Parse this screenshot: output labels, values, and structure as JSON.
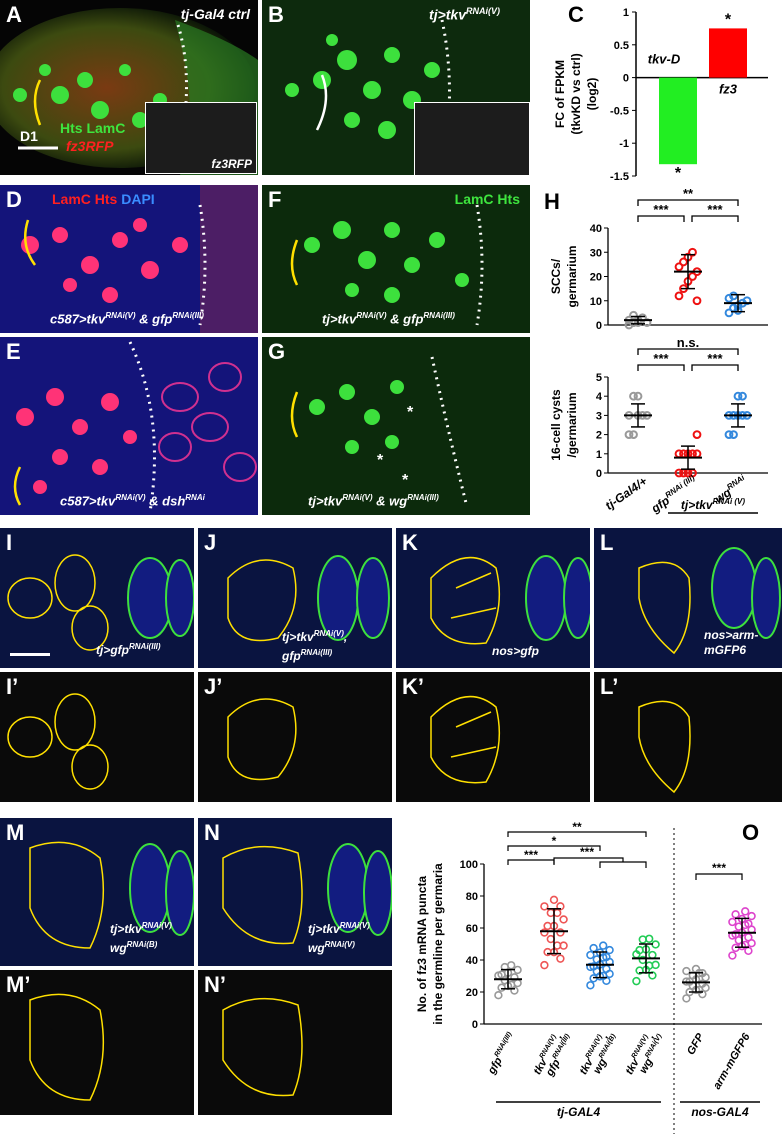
{
  "panels": {
    "A": {
      "letter": "A",
      "title": "tj-Gal4 ctrl",
      "stain": "Hts LamC",
      "reporter": "fz3RFP",
      "inset": "fz3RFP",
      "scale": "D1"
    },
    "B": {
      "letter": "B",
      "title": "tj>tkv",
      "title_sup": "RNAi(V)"
    },
    "C": {
      "letter": "C"
    },
    "D": {
      "letter": "D",
      "stain_red": "LamC Hts",
      "stain_blue": "DAPI",
      "genotype": "c587>tkv",
      "sup1": "RNAi(V)",
      "amp": "& gfp",
      "sup2": "RNAi(III)"
    },
    "E": {
      "letter": "E",
      "genotype": "c587>tkv",
      "sup1": "RNAi(V)",
      "amp": "& dsh",
      "sup2": "RNAi"
    },
    "F": {
      "letter": "F",
      "stain": "LamC Hts",
      "genotype": "tj>tkv",
      "sup1": "RNAi(V)",
      "amp": "& gfp",
      "sup2": "RNAi(III)"
    },
    "G": {
      "letter": "G",
      "genotype": "tj>tkv",
      "sup1": "RNAi(V)",
      "amp": "& wg",
      "sup2": "RNAi(III)"
    },
    "H": {
      "letter": "H"
    },
    "I": {
      "letter": "I",
      "genotype": "tj>gfp",
      "sup": "RNAi(III)"
    },
    "J": {
      "letter": "J",
      "genotype": "tj>tkv",
      "sup": "RNAi(V)",
      "line2": "gfp",
      "sup2": "RNAi(III)"
    },
    "K": {
      "letter": "K",
      "genotype": "nos>gfp"
    },
    "L": {
      "letter": "L",
      "genotype": "nos>arm-",
      "line2": "mGFP6"
    },
    "I2": {
      "letter": "I’"
    },
    "J2": {
      "letter": "J’"
    },
    "K2": {
      "letter": "K’"
    },
    "L2": {
      "letter": "L’"
    },
    "M": {
      "letter": "M",
      "genotype": "tj>tkv",
      "sup": "RNAi(V)",
      "line2": "wg",
      "sup2": "RNAi(B)"
    },
    "N": {
      "letter": "N",
      "genotype": "tj>tkv",
      "sup": "RNAi(V)",
      "line2": "wg",
      "sup2": "RNAi(V)"
    },
    "M2": {
      "letter": "M’"
    },
    "N2": {
      "letter": "N’"
    },
    "O": {
      "letter": "O"
    }
  },
  "chart_data": [
    {
      "panel": "C",
      "type": "bar",
      "categories": [
        "tkv-D",
        "fz3"
      ],
      "values": [
        -1.32,
        0.75
      ],
      "colors": [
        "#22ee22",
        "#ff0000"
      ],
      "ylabel": "FC of FPKM (tkvKD vs ctrl) (log2)",
      "ylabel_lines": [
        "FC of FPKM",
        "(tkvKD vs ctrl)",
        "(log2)"
      ],
      "ylim": [
        -1.5,
        1
      ],
      "yticks": [
        -1.5,
        -1,
        -0.5,
        0,
        0.5,
        1
      ],
      "ytick_labels": [
        "-1.5",
        "-1",
        "-0.5",
        "0",
        "0.5",
        "1"
      ],
      "significance": [
        "*",
        "*"
      ]
    },
    {
      "panel": "H-top",
      "type": "scatter",
      "categories": [
        "tj-Gal4/+",
        "gfpRNAi (III)",
        "wgRNAi"
      ],
      "colors": [
        "#999999",
        "#ee1111",
        "#3388dd"
      ],
      "ylabel_lines": [
        "SCCs/",
        "germarium"
      ],
      "ylim": [
        0,
        40
      ],
      "yticks": [
        0,
        10,
        20,
        30,
        40
      ],
      "means": [
        2,
        22,
        9
      ],
      "sd": [
        1.5,
        7,
        3.5
      ],
      "points": [
        [
          0,
          1,
          2,
          3,
          1,
          2,
          4,
          1
        ],
        [
          12,
          15,
          18,
          20,
          22,
          24,
          26,
          28,
          30,
          10
        ],
        [
          5,
          7,
          8,
          9,
          10,
          11,
          12,
          6
        ]
      ],
      "sig_brackets": [
        {
          "from": 0,
          "to": 2,
          "label": "**"
        },
        {
          "from": 0,
          "to": 1,
          "label": "***"
        },
        {
          "from": 1,
          "to": 2,
          "label": "***"
        }
      ]
    },
    {
      "panel": "H-bottom",
      "type": "scatter",
      "categories": [
        "tj-Gal4/+",
        "gfpRNAi (III)",
        "wgRNAi"
      ],
      "category_labels": [
        "tj-Gal4/+",
        "gfp",
        "wg"
      ],
      "category_sups": [
        "",
        "RNAi (III)",
        "RNAi"
      ],
      "group_label": "tj>tkv",
      "group_sup": "RNAi (V)",
      "colors": [
        "#999999",
        "#ee1111",
        "#3388dd"
      ],
      "ylabel_lines": [
        "16-cell cysts",
        "/germarium"
      ],
      "ylim": [
        0,
        5
      ],
      "yticks": [
        0,
        1,
        2,
        3,
        4,
        5
      ],
      "means": [
        3,
        0.8,
        3
      ],
      "sd": [
        0.6,
        0.6,
        0.6
      ],
      "points": [
        [
          2,
          2,
          3,
          3,
          3,
          3,
          4,
          4
        ],
        [
          0,
          0,
          0,
          0,
          1,
          1,
          1,
          1,
          1,
          2
        ],
        [
          2,
          2,
          3,
          3,
          3,
          3,
          3,
          4,
          4
        ]
      ],
      "sig_brackets": [
        {
          "from": 0,
          "to": 2,
          "label": "n.s."
        },
        {
          "from": 0,
          "to": 1,
          "label": "***"
        },
        {
          "from": 1,
          "to": 2,
          "label": "***"
        }
      ]
    },
    {
      "panel": "O",
      "type": "scatter",
      "categories": [
        "gfpRNAi(III)",
        "tkvRNAi(V), gfpRNAi(III)",
        "tkvRNAi(V), wgRNAi(B)",
        "tkvRNAi(V), wgRNAi(V)",
        "GFP",
        "arm-mGFP6"
      ],
      "category_lines": [
        [
          "gfp"
        ],
        [
          "tkv",
          ","
        ],
        [
          "tkv",
          ","
        ],
        [
          "tkv",
          ","
        ],
        [
          "GFP"
        ],
        [
          "arm-mGFP6"
        ]
      ],
      "category_sups": [
        [
          "RNAi(III)"
        ],
        [
          "RNAi(V)"
        ],
        [
          "RNAi(V)"
        ],
        [
          "RNAi(V)"
        ],
        [
          ""
        ],
        [
          ""
        ]
      ],
      "category_line2": [
        "",
        "gfp",
        "wg",
        "wg",
        "",
        ""
      ],
      "category_sup2": [
        "",
        "RNAi(III)",
        "RNAi(B)",
        "RNAi(V)",
        "",
        ""
      ],
      "colors": [
        "#999999",
        "#ee5555",
        "#3388dd",
        "#22cc55",
        "#999999",
        "#dd44cc"
      ],
      "ylabel_lines": [
        "No. of fz3 mRNA puncta",
        "in the germline per germaria"
      ],
      "ylim": [
        0,
        100
      ],
      "yticks": [
        0,
        20,
        40,
        60,
        80,
        100
      ],
      "means": [
        28,
        58,
        37,
        41,
        26,
        57
      ],
      "sd": [
        6,
        14,
        8,
        9,
        6,
        9
      ],
      "groups": [
        {
          "label": "tj-GAL4",
          "from": 0,
          "to": 3
        },
        {
          "label": "nos-GAL4",
          "from": 4,
          "to": 5
        }
      ],
      "sig": [
        {
          "label": "**",
          "from": 0,
          "to": 3
        },
        {
          "label": "*",
          "from": 0,
          "to": 2
        },
        {
          "label": "***",
          "from": 0,
          "to": 1
        },
        {
          "label": "***",
          "from": 1,
          "to": "2-3"
        },
        {
          "label": "***",
          "from": 4,
          "to": 5
        }
      ]
    }
  ]
}
